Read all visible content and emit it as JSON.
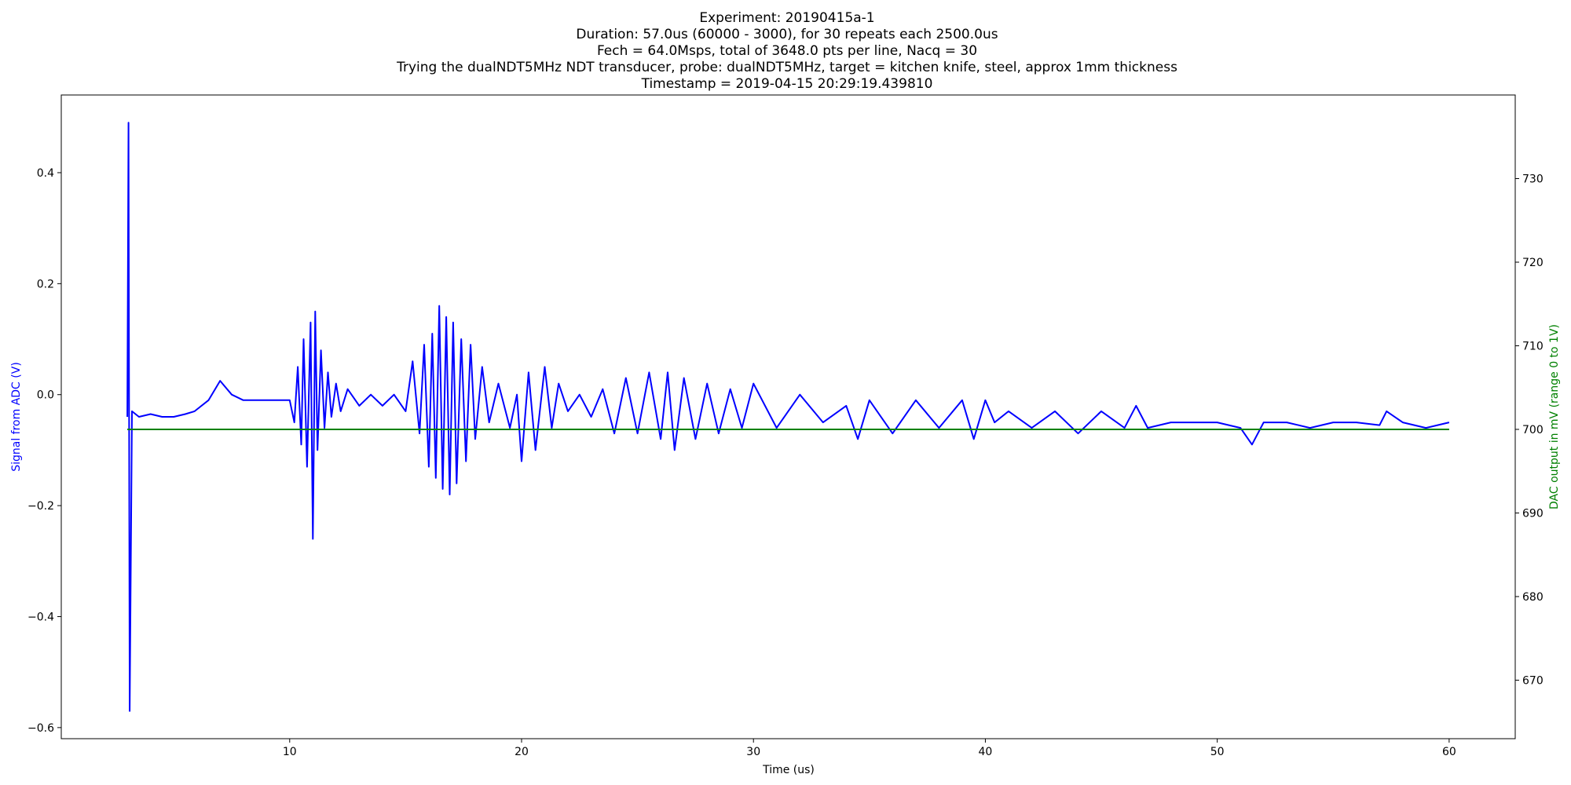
{
  "chart_data": {
    "type": "line",
    "title_lines": [
      "Experiment: 20190415a-1",
      "Duration: 57.0us (60000 - 3000), for 30 repeats each 2500.0us",
      "Fech = 64.0Msps, total of 3648.0 pts per line, Nacq = 30",
      "Trying the dualNDT5MHz NDT transducer, probe: dualNDT5MHz, target = kitchen knife, steel, approx 1mm thickness",
      "Timestamp = 2019-04-15 20:29:19.439810"
    ],
    "xlabel": "Time (us)",
    "ylabel_left": "Signal from ADC (V)",
    "ylabel_right": "DAC output in mV (range 0 to 1V)",
    "xlim": [
      0.15,
      62.85
    ],
    "ylim_left": [
      -0.62,
      0.54
    ],
    "ylim_right": [
      663,
      740
    ],
    "x_ticks": [
      10,
      20,
      30,
      40,
      50,
      60
    ],
    "y_ticks_left": [
      0.4,
      0.2,
      0.0,
      -0.2,
      -0.4,
      -0.6
    ],
    "y_ticks_left_labels": [
      "0.4",
      "0.2",
      "0.0",
      "−0.2",
      "−0.4",
      "−0.6"
    ],
    "y_ticks_right": [
      730,
      720,
      710,
      700,
      690,
      680,
      670
    ],
    "grid": false,
    "colors": {
      "signal": "#0000ff",
      "dac": "#008000",
      "ylabel_left": "#0000ff",
      "ylabel_right": "#008000"
    },
    "series": [
      {
        "axis": "left",
        "color": "#0000ff",
        "x": [
          3.0,
          3.05,
          3.1,
          3.2,
          3.5,
          4.0,
          4.5,
          5.0,
          5.5,
          5.9,
          6.5,
          7.0,
          7.5,
          8.0,
          8.5,
          9.0,
          9.5,
          10.0,
          10.2,
          10.35,
          10.5,
          10.6,
          10.75,
          10.9,
          11.0,
          11.1,
          11.2,
          11.35,
          11.5,
          11.65,
          11.8,
          12.0,
          12.2,
          12.5,
          13.0,
          13.5,
          14.0,
          14.5,
          15.0,
          15.3,
          15.6,
          15.8,
          16.0,
          16.15,
          16.3,
          16.45,
          16.6,
          16.75,
          16.9,
          17.05,
          17.2,
          17.4,
          17.6,
          17.8,
          18.0,
          18.3,
          18.6,
          19.0,
          19.5,
          19.8,
          20.0,
          20.3,
          20.6,
          21.0,
          21.3,
          21.6,
          22.0,
          22.5,
          23.0,
          23.5,
          24.0,
          24.5,
          25.0,
          25.5,
          26.0,
          26.3,
          26.6,
          27.0,
          27.5,
          28.0,
          28.5,
          29.0,
          29.5,
          30.0,
          31.0,
          32.0,
          33.0,
          34.0,
          34.5,
          35.0,
          36.0,
          37.0,
          38.0,
          39.0,
          39.5,
          40.0,
          40.4,
          41.0,
          42.0,
          43.0,
          44.0,
          45.0,
          46.0,
          46.5,
          47.0,
          48.0,
          49.0,
          50.0,
          51.0,
          51.5,
          52.0,
          53.0,
          54.0,
          55.0,
          56.0,
          57.0,
          57.3,
          58.0,
          59.0,
          60.0
        ],
        "y": [
          -0.04,
          0.49,
          -0.57,
          -0.03,
          -0.04,
          -0.035,
          -0.04,
          -0.04,
          -0.035,
          -0.03,
          -0.01,
          0.025,
          0.0,
          -0.01,
          -0.01,
          -0.01,
          -0.01,
          -0.01,
          -0.05,
          0.05,
          -0.09,
          0.1,
          -0.13,
          0.13,
          -0.26,
          0.15,
          -0.1,
          0.08,
          -0.06,
          0.04,
          -0.04,
          0.02,
          -0.03,
          0.01,
          -0.02,
          0.0,
          -0.02,
          0.0,
          -0.03,
          0.06,
          -0.07,
          0.09,
          -0.13,
          0.11,
          -0.15,
          0.16,
          -0.17,
          0.14,
          -0.18,
          0.13,
          -0.16,
          0.1,
          -0.12,
          0.09,
          -0.08,
          0.05,
          -0.05,
          0.02,
          -0.06,
          0.0,
          -0.12,
          0.04,
          -0.1,
          0.05,
          -0.06,
          0.02,
          -0.03,
          0.0,
          -0.04,
          0.01,
          -0.07,
          0.03,
          -0.07,
          0.04,
          -0.08,
          0.04,
          -0.1,
          0.03,
          -0.08,
          0.02,
          -0.07,
          0.01,
          -0.06,
          0.02,
          -0.06,
          0.0,
          -0.05,
          -0.02,
          -0.08,
          -0.01,
          -0.07,
          -0.01,
          -0.06,
          -0.01,
          -0.08,
          -0.01,
          -0.05,
          -0.03,
          -0.06,
          -0.03,
          -0.07,
          -0.03,
          -0.06,
          -0.02,
          -0.06,
          -0.05,
          -0.05,
          -0.05,
          -0.06,
          -0.09,
          -0.05,
          -0.05,
          -0.06,
          -0.05,
          -0.05,
          -0.055,
          -0.03,
          -0.05,
          -0.06,
          -0.05
        ]
      },
      {
        "axis": "right",
        "color": "#008000",
        "x": [
          3.0,
          60.0
        ],
        "y": [
          700.0,
          700.0
        ]
      }
    ]
  }
}
